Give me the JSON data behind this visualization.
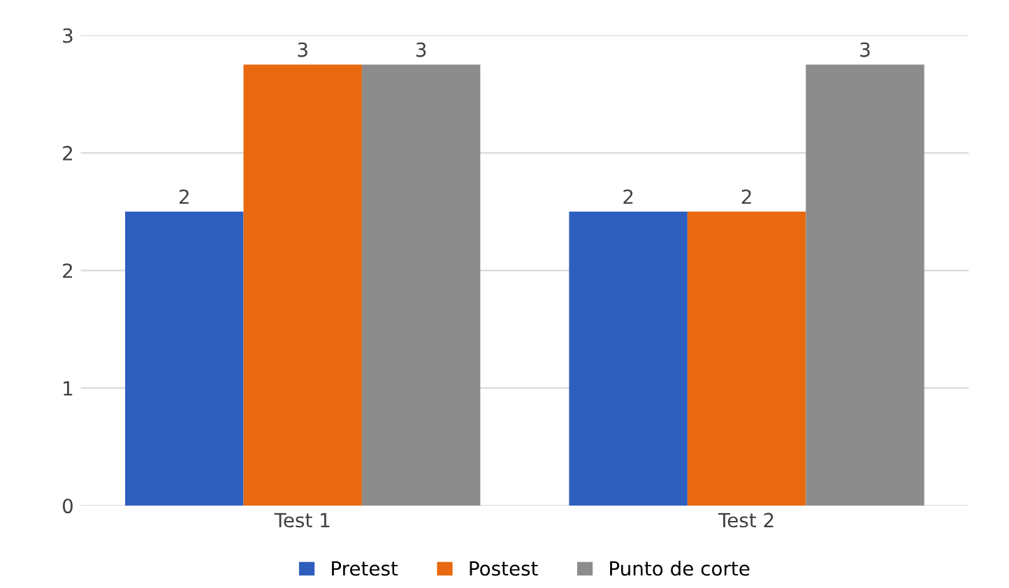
{
  "chart_data": {
    "type": "bar",
    "categories": [
      "Test 1",
      "Test 2"
    ],
    "series": [
      {
        "name": "Pretest",
        "color": "#2e5fbf",
        "values": [
          2,
          2
        ]
      },
      {
        "name": "Postest",
        "color": "#e8690f",
        "values": [
          3,
          2
        ]
      },
      {
        "name": "Punto de corte",
        "color": "#8c8c8c",
        "values": [
          3,
          3
        ]
      }
    ],
    "ylim": [
      0,
      3.2
    ],
    "yticks": [
      {
        "value": 0,
        "label": "0"
      },
      {
        "value": 0.8,
        "label": "1"
      },
      {
        "value": 1.6,
        "label": "2"
      },
      {
        "value": 2.4,
        "label": "2"
      },
      {
        "value": 3.2,
        "label": "3"
      }
    ],
    "grid": "y",
    "legend": "bottom",
    "data_labels": true
  }
}
